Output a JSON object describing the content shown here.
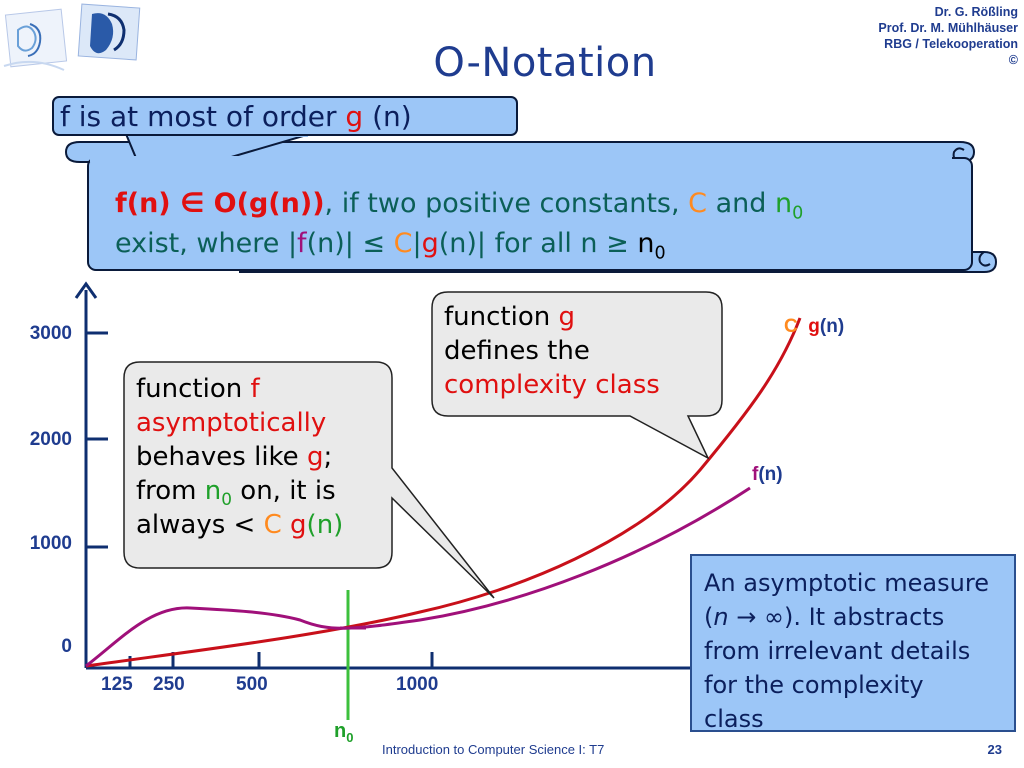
{
  "slide": {
    "title": "O-Notation",
    "authors": [
      "Dr. G. Rößling",
      "Prof. Dr. M. Mühlhäuser",
      "RBG / Telekooperation",
      "©"
    ],
    "footer": "Introduction to Computer Science I: T7",
    "page_number": "23"
  },
  "callout_top": {
    "prefix": "f is at most of order ",
    "g": "g",
    "suffix": " (n)"
  },
  "definition": {
    "f_of_n": "f(n) ",
    "element_of": "∈",
    "big_o": " O(g(n))",
    "comma_text": ", if two positive constants, ",
    "C": "C",
    "and_text": " and ",
    "n": "n",
    "n_sub": "0",
    "line2_exist": "exist,  where |",
    "f": "f",
    "n_bar": "(n)| ",
    "leq": "≤",
    "C2": " C",
    "bar": "|",
    "g": "g",
    "n_bar2": "(n)|  for all n ",
    "geq": "≥",
    "n2": " n",
    "n2_sub": "0"
  },
  "bubble_g": {
    "line1_prefix": "function ",
    "line1_g": "g",
    "line2": "defines the",
    "line3": "complexity class"
  },
  "bubble_f": {
    "line1_prefix": "function ",
    "line1_f": "f",
    "line2": "asymptotically",
    "line3_prefix": "behaves like ",
    "line3_g": "g",
    "line3_suffix": ";",
    "line4_prefix": "from ",
    "line4_n": "n",
    "line4_sub": "0",
    "line4_suffix": " on, it is",
    "line5_prefix": "always < ",
    "line5_C": "C",
    "line5_g": " g",
    "line5_n": "(n)"
  },
  "note": {
    "line1": "An asymptotic measure",
    "line2_open": "(",
    "line2_n": "n",
    "line2_arrow": " → ∞",
    "line2_rest": "). It abstracts",
    "line3": "from irrelevant details",
    "line4": "for the complexity",
    "line5": "class"
  },
  "chart_data": {
    "type": "line",
    "y_ticks": [
      "3000",
      "2000",
      "1000",
      "0"
    ],
    "x_ticks": [
      "125",
      "250",
      "500",
      "1000"
    ],
    "series": [
      {
        "name": "C g(n)",
        "label_C": "C",
        "label_g": "g",
        "label_n": "(n)",
        "color": "#c8101a"
      },
      {
        "name": "f(n)",
        "label_f": "f",
        "label_n": "(n)",
        "color": "#a0107a"
      }
    ],
    "marker": {
      "label": "n",
      "sub": "0",
      "color": "#3cc03c"
    }
  },
  "colors": {
    "title": "#1f3c8f",
    "box_fill": "#9cc6f7",
    "red": "#e01010",
    "orange": "#ff8a1f",
    "green": "#1fa02a",
    "purple": "#a0107a"
  }
}
